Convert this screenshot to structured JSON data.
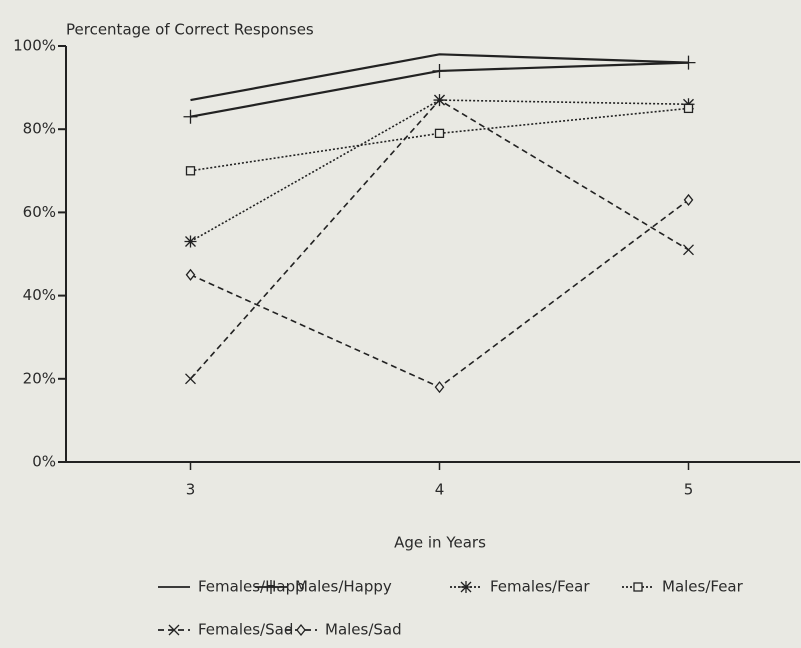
{
  "chart_data": {
    "type": "line",
    "title": "Percentage of Correct Responses",
    "x_label": "Age in Years",
    "categories": [
      "3",
      "4",
      "5"
    ],
    "ylim": [
      0,
      100
    ],
    "yticks": [
      {
        "value": 0,
        "label": "0%"
      },
      {
        "value": 20,
        "label": "20%"
      },
      {
        "value": 40,
        "label": "40%"
      },
      {
        "value": 60,
        "label": "60%"
      },
      {
        "value": 80,
        "label": "80%"
      },
      {
        "value": 100,
        "label": "100%"
      }
    ],
    "grid": false,
    "series": [
      {
        "name": "Females/Happ",
        "color": "#222222",
        "line_style": "solid",
        "marker": "none",
        "values": [
          87,
          98,
          96
        ]
      },
      {
        "name": "Males/Happy",
        "color": "#222222",
        "line_style": "solid",
        "marker": "plus",
        "values": [
          83,
          94,
          96
        ]
      },
      {
        "name": "Females/Fear",
        "color": "#222222",
        "line_style": "dotted",
        "marker": "asterisk",
        "values": [
          53,
          87,
          86
        ]
      },
      {
        "name": "Males/Fear",
        "color": "#222222",
        "line_style": "dotted",
        "marker": "square",
        "values": [
          70,
          79,
          85
        ]
      },
      {
        "name": "Females/Sad",
        "color": "#222222",
        "line_style": "dashed",
        "marker": "x",
        "values": [
          20,
          87,
          51
        ]
      },
      {
        "name": "Males/Sad",
        "color": "#222222",
        "line_style": "dashed",
        "marker": "diamond",
        "values": [
          45,
          18,
          63
        ]
      }
    ]
  }
}
